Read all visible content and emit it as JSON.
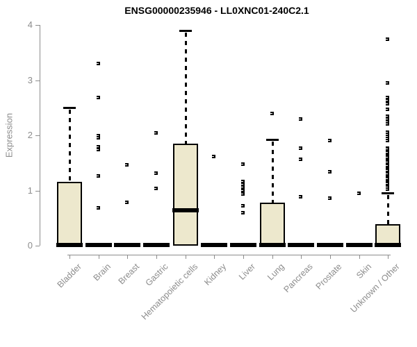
{
  "chart_data": {
    "type": "boxplot",
    "title": "ENSG00000235946 - LL0XNC01-240C2.1",
    "ylabel": "Expression",
    "xlabel": "",
    "ylim": [
      0,
      4
    ],
    "yticks": [
      0,
      1,
      2,
      3,
      4
    ],
    "grid": false,
    "legend": false,
    "box_fill_color": "#EDE8CD",
    "box_line_color": "#000000",
    "axis_color": "#8C8C8C",
    "categories": [
      "Bladder",
      "Brain",
      "Breast",
      "Gastric",
      "Hematopoietic cells",
      "Kidney",
      "Liver",
      "Lung",
      "Pancreas",
      "Prostate",
      "Skin",
      "Unknown / Other"
    ],
    "boxes": [
      {
        "category": "Bladder",
        "q1": 0,
        "median": 0.02,
        "q3": 1.16,
        "whisker_low": 0,
        "whisker_high": 2.5,
        "outliers": []
      },
      {
        "category": "Brain",
        "q1": 0,
        "median": 0.02,
        "q3": 0.02,
        "whisker_low": 0,
        "whisker_high": 0.02,
        "outliers": [
          3.3,
          2.69,
          2.0,
          1.95,
          1.79,
          1.74,
          1.26,
          0.68
        ]
      },
      {
        "category": "Breast",
        "q1": 0,
        "median": 0.02,
        "q3": 0.02,
        "whisker_low": 0,
        "whisker_high": 0.02,
        "outliers": [
          1.46,
          0.79
        ]
      },
      {
        "category": "Gastric",
        "q1": 0,
        "median": 0.02,
        "q3": 0.02,
        "whisker_low": 0,
        "whisker_high": 0.02,
        "outliers": [
          2.04,
          1.31,
          1.04
        ]
      },
      {
        "category": "Hematopoietic cells",
        "q1": 0,
        "median": 0.66,
        "q3": 1.85,
        "whisker_low": 0,
        "whisker_high": 3.9,
        "outliers": []
      },
      {
        "category": "Kidney",
        "q1": 0,
        "median": 0.02,
        "q3": 0.02,
        "whisker_low": 0,
        "whisker_high": 0.02,
        "outliers": [
          1.62
        ]
      },
      {
        "category": "Liver",
        "q1": 0,
        "median": 0.02,
        "q3": 0.02,
        "whisker_low": 0,
        "whisker_high": 0.02,
        "outliers": [
          1.48,
          1.16,
          1.11,
          1.06,
          1.0,
          0.94,
          0.72,
          0.6
        ]
      },
      {
        "category": "Lung",
        "q1": 0,
        "median": 0.02,
        "q3": 0.78,
        "whisker_low": 0,
        "whisker_high": 1.92,
        "outliers": [
          2.39
        ]
      },
      {
        "category": "Pancreas",
        "q1": 0,
        "median": 0.02,
        "q3": 0.02,
        "whisker_low": 0,
        "whisker_high": 0.02,
        "outliers": [
          2.29,
          1.77,
          1.57,
          0.89
        ]
      },
      {
        "category": "Prostate",
        "q1": 0,
        "median": 0.02,
        "q3": 0.02,
        "whisker_low": 0,
        "whisker_high": 0.02,
        "outliers": [
          1.9,
          1.34,
          0.86
        ]
      },
      {
        "category": "Skin",
        "q1": 0,
        "median": 0.02,
        "q3": 0.02,
        "whisker_low": 0,
        "whisker_high": 0.02,
        "outliers": [
          0.95
        ]
      },
      {
        "category": "Unknown / Other",
        "q1": 0,
        "median": 0.02,
        "q3": 0.39,
        "whisker_low": 0,
        "whisker_high": 0.95,
        "outliers": [
          3.74,
          2.95,
          2.69,
          2.64,
          2.57,
          2.47,
          2.34,
          2.3,
          2.25,
          2.21,
          2.06,
          2.02,
          1.98,
          1.94,
          1.9,
          1.77,
          1.75,
          1.72,
          1.69,
          1.66,
          1.63,
          1.6,
          1.57,
          1.54,
          1.51,
          1.48,
          1.45,
          1.42,
          1.39,
          1.36,
          1.33,
          1.3,
          1.27,
          1.24,
          1.21,
          1.18,
          1.15,
          1.12,
          1.09,
          1.06,
          1.03
        ]
      }
    ]
  }
}
